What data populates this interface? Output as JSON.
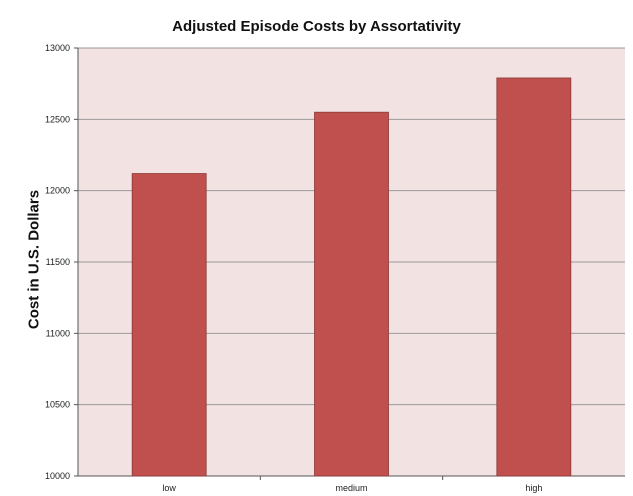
{
  "chart_data": {
    "type": "bar",
    "title": "Adjusted Episode Costs by Assortativity",
    "xlabel": "",
    "ylabel": "Cost in U.S. Dollars",
    "categories": [
      "low",
      "medium",
      "high"
    ],
    "values": [
      12120,
      12550,
      12790
    ],
    "ylim": [
      10000,
      13000
    ],
    "yticks": [
      10000,
      10500,
      11000,
      11500,
      12000,
      12500,
      13000
    ],
    "grid": true,
    "legend": "none",
    "colors": {
      "bar": "#c0504d",
      "bar_edge": "#8c3836",
      "plot_background": "#f2e2e2",
      "gridline": "#9a9a9a"
    }
  }
}
